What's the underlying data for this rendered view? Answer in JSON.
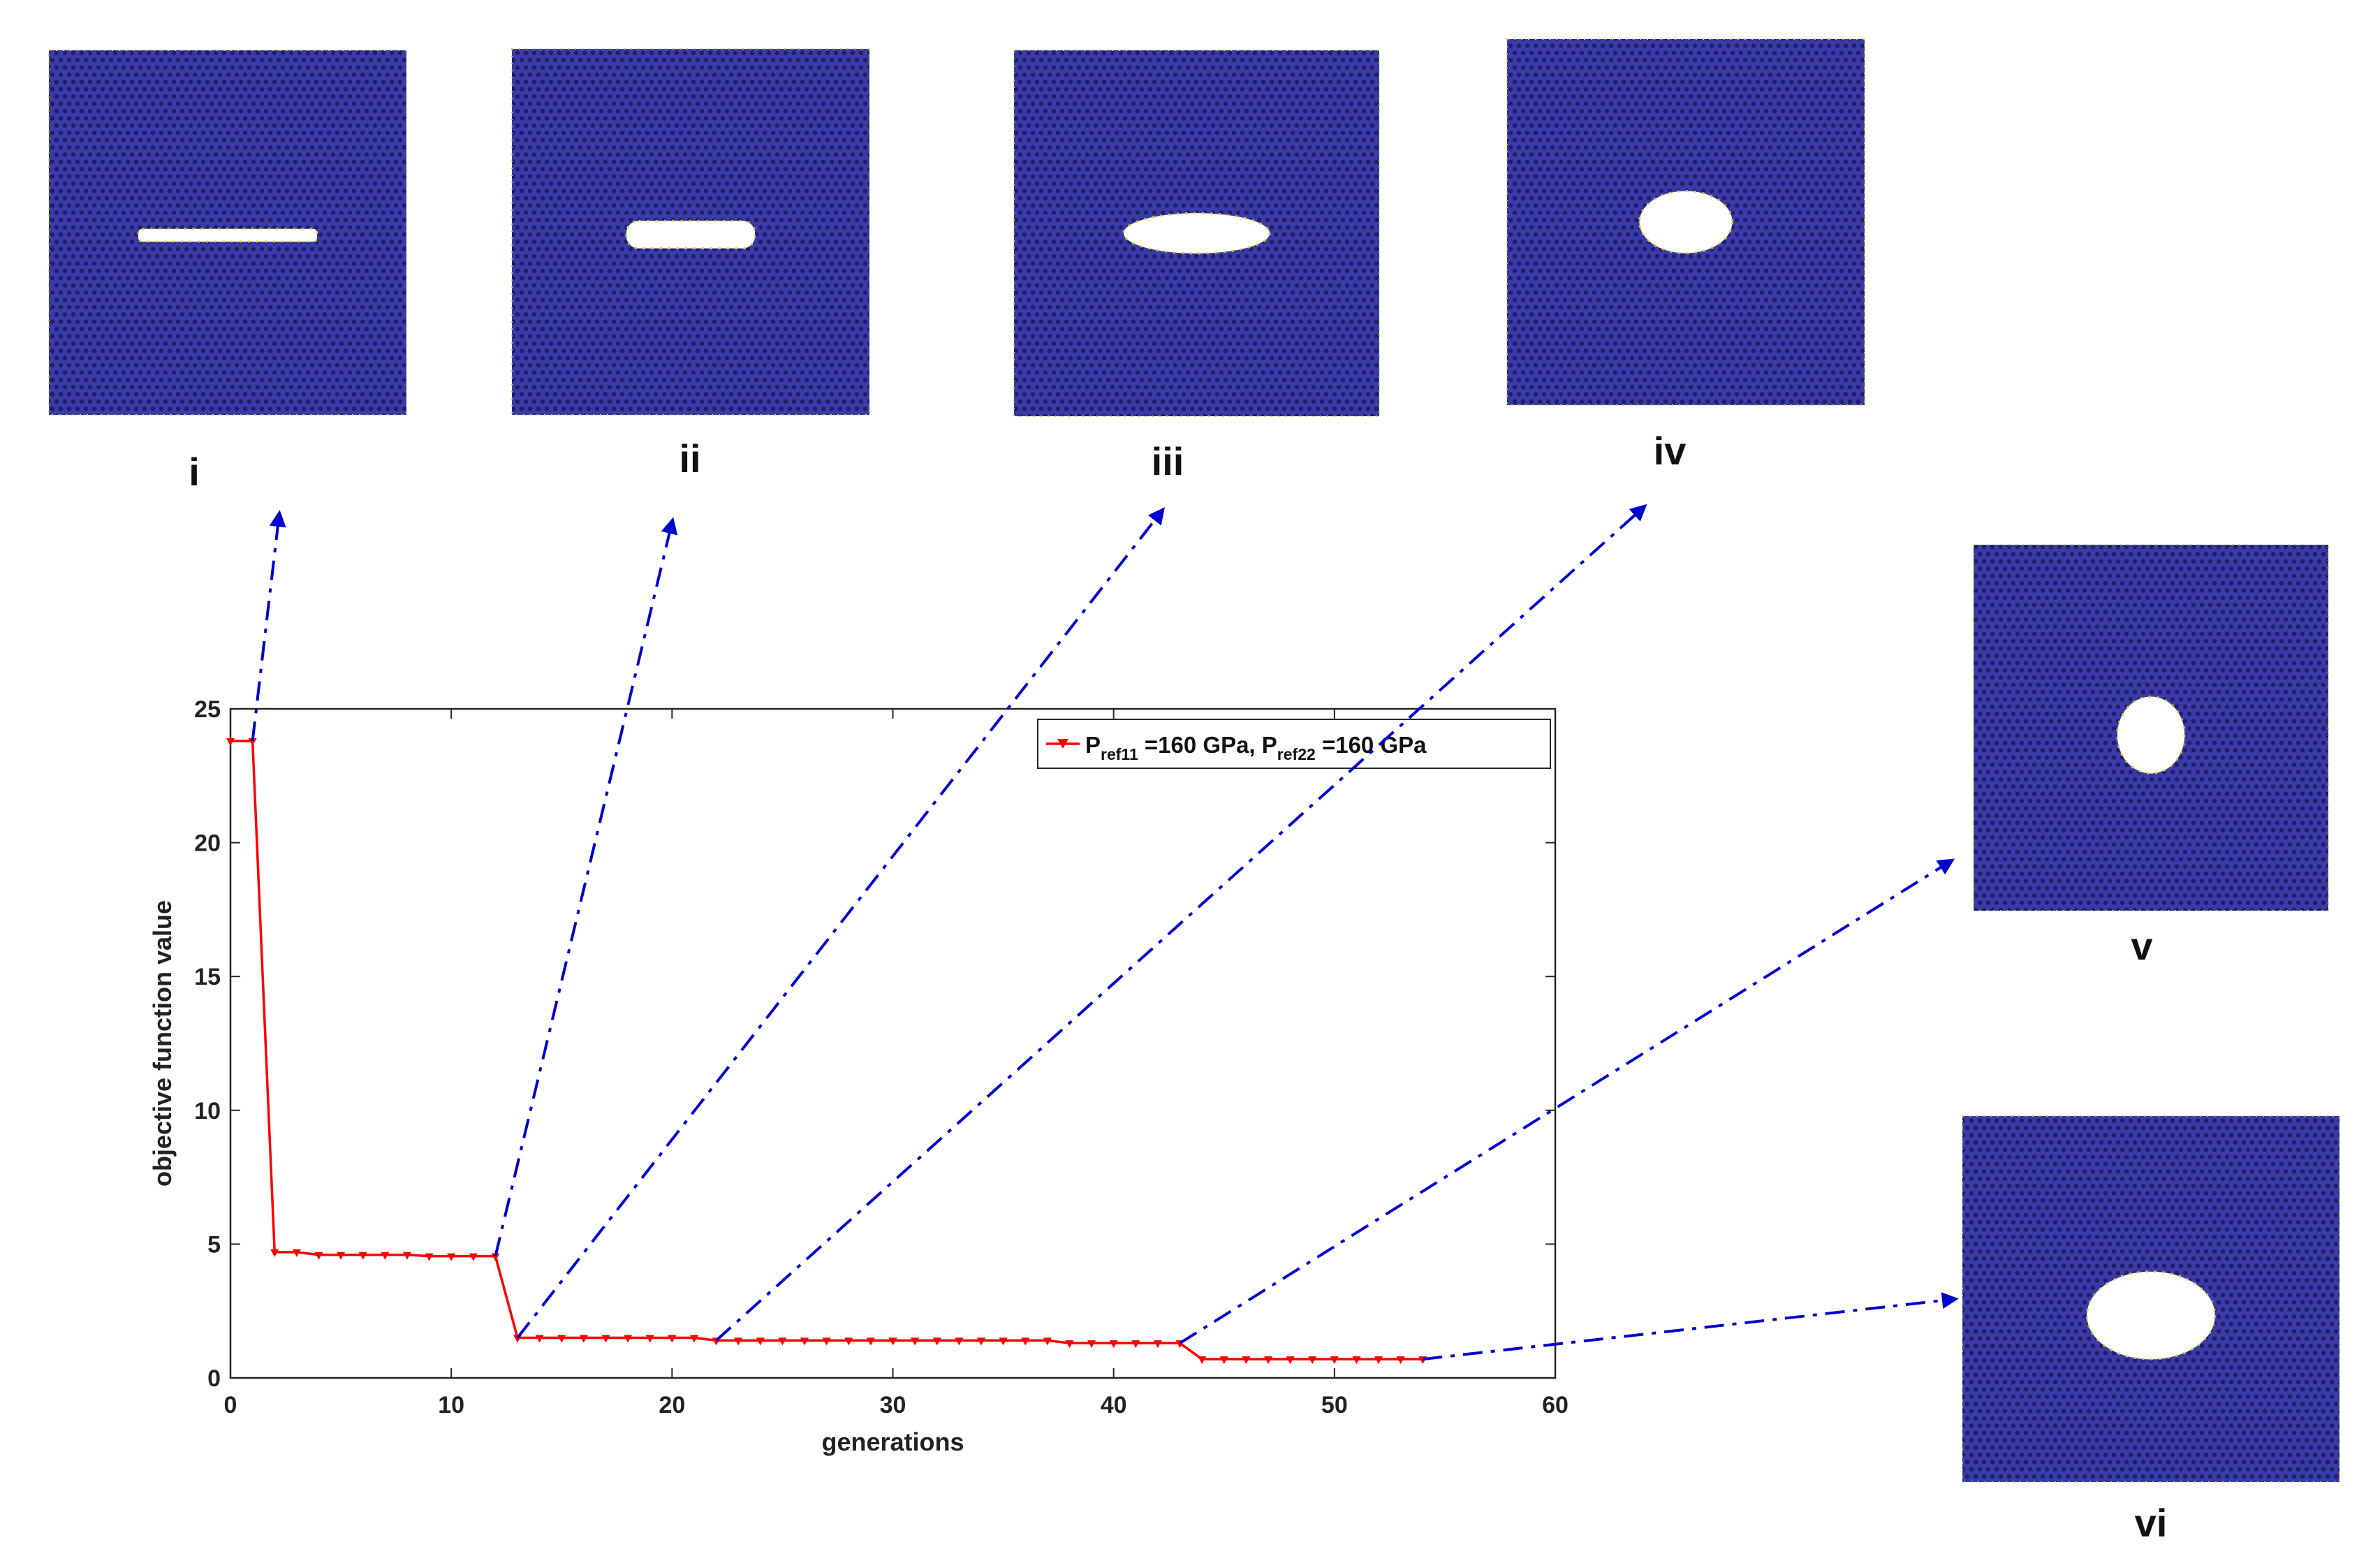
{
  "colors": {
    "lattice": "#3a3aa8",
    "atom_dot": "#1e1e6a",
    "edge_atom": "#d4d236",
    "void": "#ffffff",
    "series": "#ff0000",
    "arrow": "#0000cc",
    "axes": "#262626"
  },
  "lattices": [
    {
      "id": "i",
      "label": "i",
      "void_shape": "slit",
      "void_w": 0.5,
      "void_h": 0.035
    },
    {
      "id": "ii",
      "label": "ii",
      "void_shape": "slot",
      "void_w": 0.36,
      "void_h": 0.075
    },
    {
      "id": "iii",
      "label": "iii",
      "void_shape": "ellipse",
      "void_w": 0.4,
      "void_h": 0.11
    },
    {
      "id": "iv",
      "label": "iv",
      "void_shape": "ellipse",
      "void_w": 0.26,
      "void_h": 0.17
    },
    {
      "id": "v",
      "label": "v",
      "void_shape": "ellipse",
      "void_w": 0.19,
      "void_h": 0.21
    },
    {
      "id": "vi",
      "label": "vi",
      "void_shape": "ellipse",
      "void_w": 0.34,
      "void_h": 0.24
    }
  ],
  "chart_data": {
    "type": "line",
    "xlabel": "generations",
    "ylabel": "objective function value",
    "xlim": [
      0,
      60
    ],
    "ylim": [
      0,
      25
    ],
    "xticks": [
      0,
      10,
      20,
      30,
      40,
      50,
      60
    ],
    "yticks": [
      0,
      5,
      10,
      15,
      20,
      25
    ],
    "grid": false,
    "legend_position": "top-right",
    "legend": {
      "text_1": "P",
      "sub_1": "ref11",
      "text_2": " =160 GPa, P",
      "sub_2": "ref22",
      "text_3": " =160 GPa"
    },
    "series": [
      {
        "name": "Pref11 =160 GPa, Pref22 =160 GPa",
        "x": [
          0,
          1,
          2,
          3,
          4,
          5,
          6,
          7,
          8,
          9,
          10,
          11,
          12,
          13,
          14,
          15,
          16,
          17,
          18,
          19,
          20,
          21,
          22,
          23,
          24,
          25,
          26,
          27,
          28,
          29,
          30,
          31,
          32,
          33,
          34,
          35,
          36,
          37,
          38,
          39,
          40,
          41,
          42,
          43,
          44,
          45,
          46,
          47,
          48,
          49,
          50,
          51,
          52,
          53,
          54
        ],
        "y": [
          23.8,
          23.8,
          4.7,
          4.7,
          4.6,
          4.6,
          4.6,
          4.6,
          4.6,
          4.55,
          4.55,
          4.55,
          4.55,
          1.5,
          1.5,
          1.5,
          1.5,
          1.5,
          1.5,
          1.5,
          1.5,
          1.5,
          1.4,
          1.4,
          1.4,
          1.4,
          1.4,
          1.4,
          1.4,
          1.4,
          1.4,
          1.4,
          1.4,
          1.4,
          1.4,
          1.4,
          1.4,
          1.4,
          1.3,
          1.3,
          1.3,
          1.3,
          1.3,
          1.3,
          0.7,
          0.7,
          0.7,
          0.7,
          0.7,
          0.7,
          0.7,
          0.7,
          0.7,
          0.7,
          0.7
        ]
      }
    ],
    "annotations": [
      {
        "from_x": 1,
        "from_y": 23.8,
        "to": "i"
      },
      {
        "from_x": 12,
        "from_y": 4.55,
        "to": "ii"
      },
      {
        "from_x": 13,
        "from_y": 1.5,
        "to": "iii"
      },
      {
        "from_x": 22,
        "from_y": 1.4,
        "to": "iv"
      },
      {
        "from_x": 43,
        "from_y": 1.3,
        "to": "v"
      },
      {
        "from_x": 54,
        "from_y": 0.7,
        "to": "vi"
      }
    ]
  }
}
